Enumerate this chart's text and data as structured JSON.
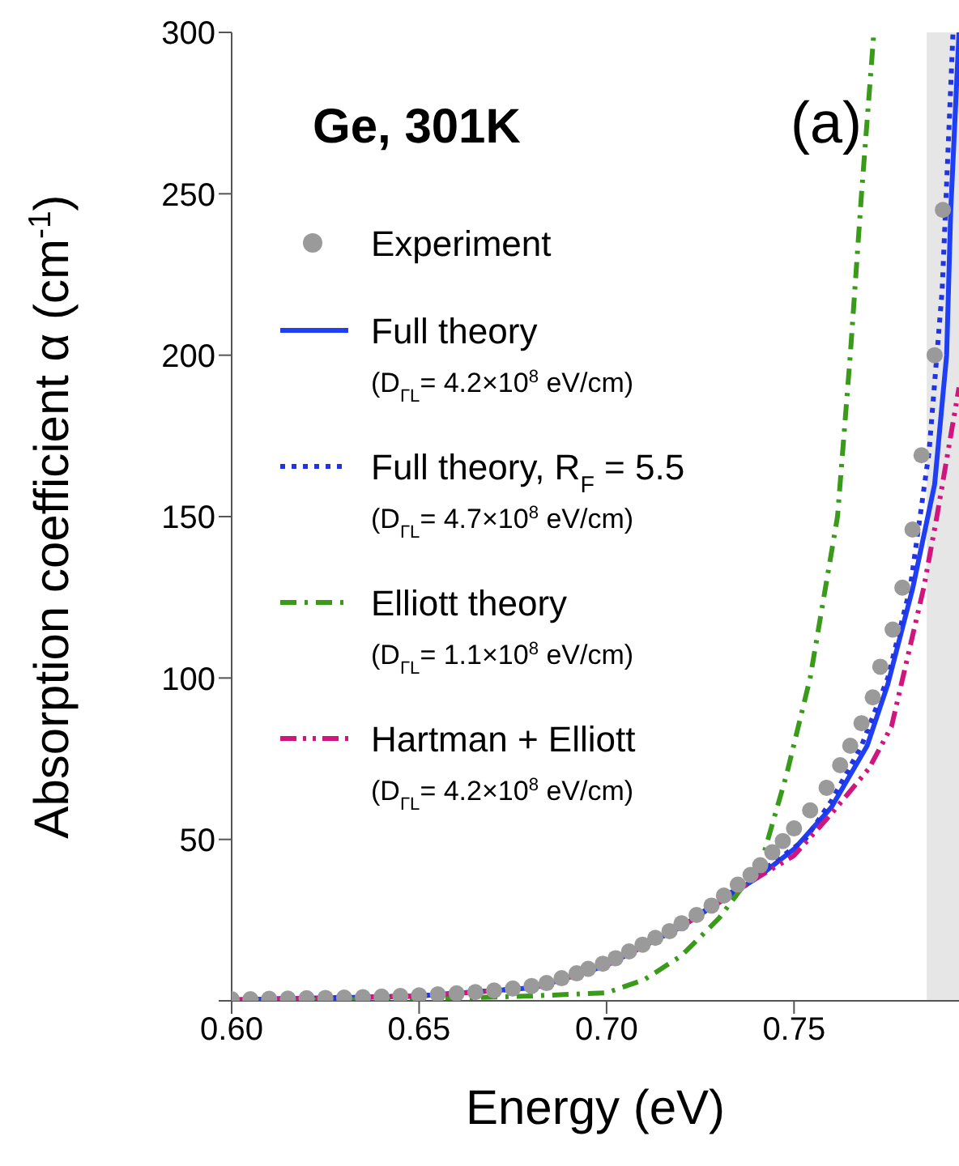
{
  "chart_data": {
    "type": "line",
    "xlabel": "Energy (eV)",
    "ylabel": "Absorption coefficient α (cm$^{-1}$)",
    "xlim": [
      0.6,
      0.794
    ],
    "ylim": [
      0,
      300
    ],
    "xticks": [
      {
        "value": 0.6,
        "label": "0.60"
      },
      {
        "value": 0.65,
        "label": "0.65"
      },
      {
        "value": 0.7,
        "label": "0.70"
      },
      {
        "value": 0.75,
        "label": "0.75"
      }
    ],
    "yticks": [
      {
        "value": 0,
        "label": null
      },
      50,
      100,
      150,
      200,
      250,
      300
    ],
    "legend": "top left",
    "annotations": [
      "Ge, 301K",
      "(a)",
      "(D$_{ΓL}$= 4.2×10$^{8}$ eV/cm)",
      "(D$_{ΓL}$= 4.7×10$^{8}$ eV/cm)",
      "(D$_{ΓL}$= 1.1×10$^{8}$ eV/cm)",
      "(D$_{ΓL}$= 4.2×10$^{8}$ eV/cm)"
    ],
    "bands": [
      {
        "axis": "x",
        "from": 0.7854,
        "to": 0.794,
        "color": "#e6e6e6"
      }
    ],
    "series": [
      {
        "name": "Experiment",
        "type": "scatter",
        "marker": "circle",
        "color": "#9a9a9a",
        "x": [
          0.6,
          0.605,
          0.61,
          0.615,
          0.62,
          0.625,
          0.63,
          0.635,
          0.64,
          0.645,
          0.65,
          0.655,
          0.66,
          0.665,
          0.67,
          0.675,
          0.68,
          0.684,
          0.688,
          0.692,
          0.6951,
          0.699,
          0.7024,
          0.706,
          0.7096,
          0.713,
          0.7168,
          0.72,
          0.724,
          0.728,
          0.7313,
          0.735,
          0.7384,
          0.741,
          0.7442,
          0.747,
          0.75,
          0.7543,
          0.7587,
          0.7623,
          0.765,
          0.768,
          0.771,
          0.773,
          0.7763,
          0.7789,
          0.7816,
          0.784,
          0.7875,
          0.7897
        ],
        "values": [
          0.5,
          0.5,
          0.6,
          0.7,
          0.8,
          0.9,
          1,
          1.1,
          1.3,
          1.5,
          1.7,
          2,
          2.3,
          2.7,
          3.2,
          3.8,
          4.6,
          5.5,
          7,
          8.5,
          9.9,
          11.5,
          13.2,
          15.3,
          17.4,
          19.5,
          21.6,
          24,
          26.6,
          29.5,
          32.6,
          36,
          39,
          42,
          46,
          49.5,
          53.4,
          59,
          66,
          73,
          79,
          86,
          94,
          103.5,
          115,
          128,
          146,
          169,
          200,
          245
        ]
      },
      {
        "name": "Full theory",
        "line_style": "solid",
        "color": "#1f3ff5",
        "x": [
          0.6,
          0.65,
          0.68,
          0.685,
          0.7,
          0.72,
          0.74,
          0.75,
          0.76,
          0.7695,
          0.775,
          0.7817,
          0.7875,
          0.7907,
          0.7918,
          0.794
        ],
        "values": [
          0.3,
          1.5,
          4,
          5.5,
          11,
          23,
          38,
          47,
          60,
          79,
          98,
          128,
          160,
          200,
          245,
          300
        ]
      },
      {
        "name": "Full theory, R$_{F}$ = 5.5",
        "line_style": "dotted",
        "color": "#2233e0",
        "x": [
          0.6,
          0.65,
          0.68,
          0.685,
          0.7,
          0.72,
          0.74,
          0.753,
          0.76,
          0.768,
          0.775,
          0.781,
          0.786,
          0.7895,
          0.7924
        ],
        "values": [
          0.3,
          1.5,
          4,
          5.5,
          11,
          23,
          39,
          50,
          62,
          79,
          100,
          128,
          170,
          220,
          300
        ]
      },
      {
        "name": "Elliott theory",
        "line_style": "dashdot",
        "color": "#3a9a1a",
        "x": [
          0.6,
          0.65,
          0.68,
          0.7,
          0.71,
          0.72,
          0.73,
          0.7413,
          0.748,
          0.7543,
          0.7616,
          0.765,
          0.768,
          0.7713
        ],
        "values": [
          0.1,
          0.5,
          1.5,
          2.5,
          6.5,
          14,
          25.6,
          43,
          70,
          100,
          150,
          200,
          250,
          300
        ]
      },
      {
        "name": "Hartman + Elliott",
        "line_style": "dashdotdot",
        "color": "#d0157f",
        "x": [
          0.6,
          0.65,
          0.68,
          0.685,
          0.7,
          0.72,
          0.74,
          0.75,
          0.76,
          0.77,
          0.776,
          0.78,
          0.7846,
          0.7881,
          0.794
        ],
        "values": [
          0.3,
          1.5,
          4,
          5.5,
          11,
          23,
          38,
          45,
          58,
          72,
          85,
          105,
          128,
          150,
          190
        ]
      }
    ]
  }
}
